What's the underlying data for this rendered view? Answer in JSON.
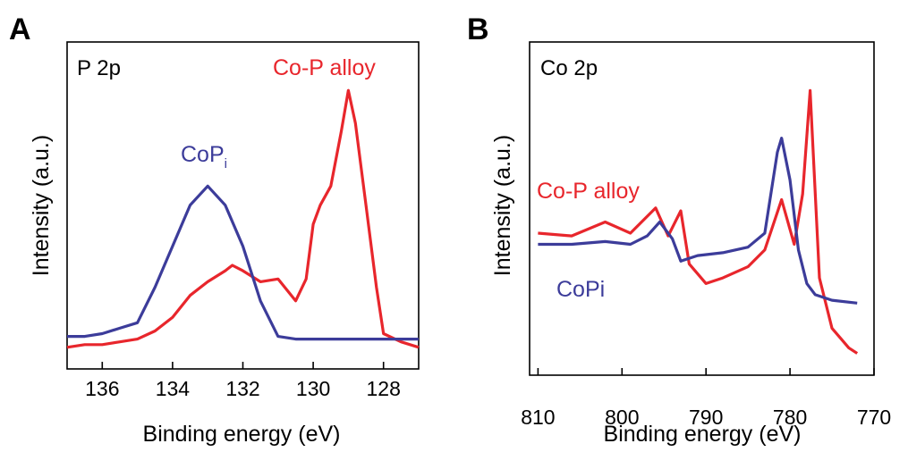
{
  "colors": {
    "red": "#e8262c",
    "blue": "#3c3c9a",
    "axis": "#000000"
  },
  "chart_data": [
    {
      "panel": "A",
      "type": "line",
      "panel_label": "P 2p",
      "xlabel": "Binding energy (eV)",
      "ylabel": "Intensity (a.u.)",
      "xlim": [
        137,
        127
      ],
      "x_reversed": true,
      "ylim": [
        0,
        1
      ],
      "y_ticks_shown": false,
      "x_ticks": [
        136,
        134,
        132,
        130,
        128
      ],
      "series": [
        {
          "name": "Co-P alloy",
          "color": "red",
          "x": [
            137,
            136.5,
            136,
            135.5,
            135,
            134.5,
            134,
            133.5,
            133,
            132.5,
            132.3,
            132,
            131.5,
            131,
            130.5,
            130.2,
            130,
            129.8,
            129.5,
            129.2,
            129,
            128.8,
            128.5,
            128.2,
            128,
            127.5,
            127
          ],
          "y": [
            0.03,
            0.04,
            0.04,
            0.05,
            0.06,
            0.09,
            0.14,
            0.22,
            0.27,
            0.31,
            0.33,
            0.31,
            0.27,
            0.28,
            0.2,
            0.28,
            0.48,
            0.55,
            0.62,
            0.82,
            0.97,
            0.85,
            0.55,
            0.25,
            0.08,
            0.05,
            0.03
          ]
        },
        {
          "name": "CoPi",
          "color": "blue",
          "x": [
            137,
            136.5,
            136,
            135.5,
            135,
            134.5,
            134,
            133.5,
            133,
            132.5,
            132,
            131.5,
            131,
            130.5,
            130,
            129.5,
            129,
            128.5,
            128,
            127.5,
            127
          ],
          "y": [
            0.07,
            0.07,
            0.08,
            0.1,
            0.12,
            0.25,
            0.4,
            0.55,
            0.62,
            0.55,
            0.4,
            0.2,
            0.07,
            0.06,
            0.06,
            0.06,
            0.06,
            0.06,
            0.06,
            0.06,
            0.06
          ]
        }
      ]
    },
    {
      "panel": "B",
      "type": "line",
      "panel_label": "Co 2p",
      "xlabel": "Binding energy (eV)",
      "ylabel": "Intensity (a.u.)",
      "xlim": [
        811,
        770
      ],
      "x_reversed": true,
      "ylim": [
        0,
        1
      ],
      "y_ticks_shown": false,
      "x_ticks": [
        810,
        800,
        790,
        780,
        770
      ],
      "series": [
        {
          "name": "Co-P alloy",
          "color": "red",
          "x": [
            810,
            806,
            802,
            799,
            796,
            794.5,
            793,
            792,
            790,
            788,
            785,
            783,
            781,
            779.5,
            778.5,
            777.6,
            776.5,
            775,
            773,
            772
          ],
          "y": [
            0.46,
            0.45,
            0.5,
            0.46,
            0.55,
            0.45,
            0.54,
            0.35,
            0.28,
            0.3,
            0.34,
            0.4,
            0.58,
            0.42,
            0.6,
            0.97,
            0.3,
            0.12,
            0.05,
            0.03
          ]
        },
        {
          "name": "CoPi",
          "color": "blue",
          "x": [
            810,
            806,
            802,
            799,
            797,
            795.5,
            794,
            793,
            791,
            788,
            785,
            783,
            781.5,
            781,
            780,
            779,
            778,
            777,
            775,
            772
          ],
          "y": [
            0.42,
            0.42,
            0.43,
            0.42,
            0.45,
            0.5,
            0.44,
            0.36,
            0.38,
            0.39,
            0.41,
            0.46,
            0.75,
            0.8,
            0.65,
            0.4,
            0.28,
            0.24,
            0.22,
            0.21
          ]
        }
      ]
    }
  ],
  "labels": {
    "panel_A_letter": "A",
    "panel_B_letter": "B",
    "A_coP_alloy": "Co-P alloy",
    "A_coPi_main": "CoP",
    "A_coPi_sub": "i",
    "B_coP_alloy": "Co-P alloy",
    "B_coPi": "CoPi"
  }
}
